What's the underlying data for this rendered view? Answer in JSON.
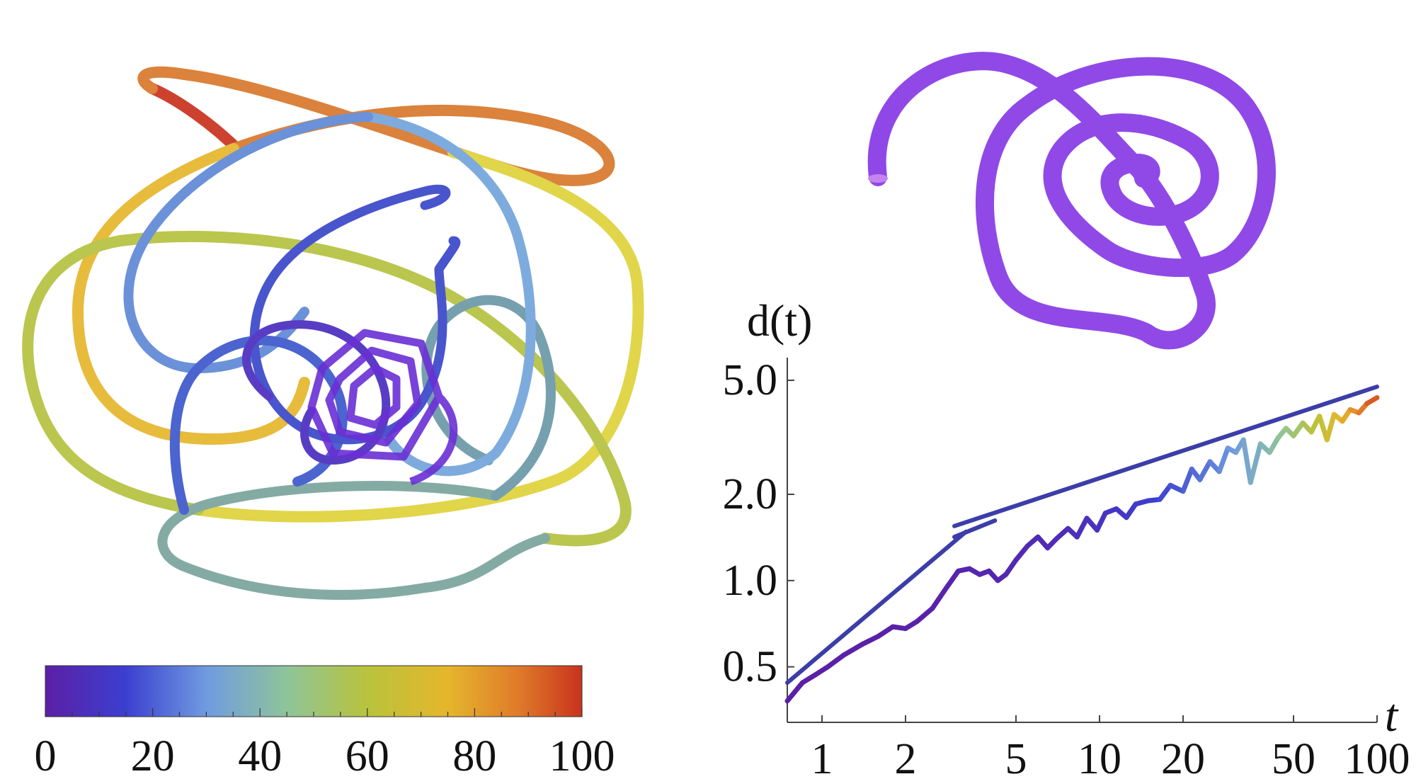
{
  "colors": {
    "ramp": [
      "#5b1fa6",
      "#3c3fd0",
      "#6f9be0",
      "#8fc49a",
      "#b9c33c",
      "#e5b62c",
      "#e07b2a",
      "#c8331d"
    ],
    "spiral": "#8a3fe6",
    "fit_line": "#3b3ea8",
    "axis": "#444444"
  },
  "colorbar": {
    "ticks": [
      "0",
      "20",
      "40",
      "60",
      "80",
      "100"
    ]
  },
  "chart_data": {
    "type": "line",
    "title": "",
    "ylabel": "d(t)",
    "xlabel": "t",
    "xscale": "log",
    "yscale": "log",
    "xlim": [
      0.75,
      100
    ],
    "ylim": [
      0.32,
      6.0
    ],
    "x_ticks": [
      {
        "value": 1,
        "label": "1"
      },
      {
        "value": 2,
        "label": "2"
      },
      {
        "value": 5,
        "label": "5"
      },
      {
        "value": 10,
        "label": "10"
      },
      {
        "value": 20,
        "label": "20"
      },
      {
        "value": 50,
        "label": "50"
      },
      {
        "value": 100,
        "label": "100"
      }
    ],
    "y_ticks": [
      {
        "value": 0.5,
        "label": "0.5"
      },
      {
        "value": 1.0,
        "label": "1.0"
      },
      {
        "value": 2.0,
        "label": "2.0"
      },
      {
        "value": 5.0,
        "label": "5.0"
      }
    ],
    "series": [
      {
        "kind": "data",
        "color_by": "t",
        "x": [
          0.75,
          0.85,
          0.95,
          1.05,
          1.2,
          1.4,
          1.6,
          1.8,
          2.0,
          2.2,
          2.5,
          2.8,
          3.1,
          3.4,
          3.7,
          4.0,
          4.3,
          4.6,
          5.0,
          5.5,
          6.0,
          6.5,
          7.0,
          7.7,
          8.3,
          9.0,
          9.8,
          10.5,
          11.5,
          12.5,
          13.5,
          15.0,
          16.5,
          18.0,
          20.0,
          21.5,
          23.0,
          25.0,
          27.0,
          29.0,
          31.0,
          33.0,
          35.0,
          38.0,
          41.0,
          44.0,
          47.0,
          50.0,
          54.0,
          58.0,
          62.0,
          66.0,
          70.0,
          75.0,
          80.0,
          86.0,
          92.0,
          100.0
        ],
        "y": [
          0.38,
          0.44,
          0.47,
          0.5,
          0.55,
          0.6,
          0.64,
          0.69,
          0.68,
          0.72,
          0.8,
          0.94,
          1.08,
          1.1,
          1.05,
          1.08,
          1.0,
          1.05,
          1.18,
          1.32,
          1.42,
          1.3,
          1.4,
          1.52,
          1.42,
          1.65,
          1.5,
          1.72,
          1.78,
          1.66,
          1.85,
          1.9,
          1.92,
          2.15,
          2.05,
          2.45,
          2.25,
          2.6,
          2.4,
          2.9,
          2.8,
          3.1,
          2.2,
          3.0,
          2.8,
          3.15,
          3.4,
          3.2,
          3.55,
          3.3,
          3.75,
          3.1,
          3.8,
          3.6,
          3.95,
          3.85,
          4.15,
          4.35
        ]
      },
      {
        "kind": "fit",
        "x": [
          0.75,
          3.3
        ],
        "y": [
          0.44,
          1.48
        ]
      },
      {
        "kind": "fit",
        "x": [
          3.0,
          4.2
        ],
        "y": [
          1.42,
          1.62
        ]
      },
      {
        "kind": "fit",
        "x": [
          3.0,
          100.0
        ],
        "y": [
          1.55,
          4.75
        ]
      }
    ]
  }
}
